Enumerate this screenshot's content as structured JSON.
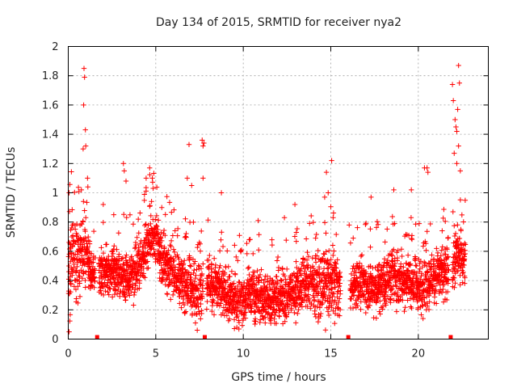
{
  "chart_data": {
    "type": "scatter",
    "title": "Day 134 of 2015, SRMTID for receiver nya2",
    "xlabel": "GPS time / hours",
    "ylabel": "SRMTID / TECUs",
    "xlim": [
      0,
      24
    ],
    "ylim": [
      0,
      2
    ],
    "xticks": [
      0,
      5,
      10,
      15,
      20
    ],
    "yticks": [
      0,
      0.2,
      0.4,
      0.6,
      0.8,
      1,
      1.2,
      1.4,
      1.6,
      1.8,
      2
    ],
    "xtick_labels": [
      "0",
      "5",
      "10",
      "15",
      "20"
    ],
    "ytick_labels": [
      "0",
      "0.2",
      "0.4",
      "0.6",
      "0.8",
      "1",
      "1.2",
      "1.4",
      "1.6",
      "1.8",
      "2"
    ],
    "grid": true,
    "marker": "plus",
    "color": "#ff0000",
    "profile": [
      {
        "x": 0.0,
        "lo": 0.05,
        "hi": 1.02
      },
      {
        "x": 0.5,
        "lo": 0.15,
        "hi": 0.95
      },
      {
        "x": 0.9,
        "lo": 0.25,
        "hi": 1.1
      },
      {
        "x": 1.3,
        "lo": 0.25,
        "hi": 0.65
      },
      {
        "x": 2.0,
        "lo": 0.22,
        "hi": 0.7
      },
      {
        "x": 3.0,
        "lo": 0.22,
        "hi": 0.7
      },
      {
        "x": 3.5,
        "lo": 0.15,
        "hi": 0.65
      },
      {
        "x": 4.2,
        "lo": 0.3,
        "hi": 0.8
      },
      {
        "x": 4.8,
        "lo": 0.45,
        "hi": 1.05
      },
      {
        "x": 5.3,
        "lo": 0.3,
        "hi": 0.85
      },
      {
        "x": 6.0,
        "lo": 0.2,
        "hi": 0.7
      },
      {
        "x": 6.8,
        "lo": 0.1,
        "hi": 0.65
      },
      {
        "x": 7.4,
        "lo": 0.02,
        "hi": 0.6
      },
      {
        "x": 7.9,
        "lo": 0.15,
        "hi": 0.7
      },
      {
        "x": 8.6,
        "lo": 0.1,
        "hi": 0.6
      },
      {
        "x": 9.5,
        "lo": 0.02,
        "hi": 0.5
      },
      {
        "x": 10.5,
        "lo": 0.05,
        "hi": 0.55
      },
      {
        "x": 11.5,
        "lo": 0.05,
        "hi": 0.5
      },
      {
        "x": 12.5,
        "lo": 0.05,
        "hi": 0.55
      },
      {
        "x": 13.5,
        "lo": 0.1,
        "hi": 0.65
      },
      {
        "x": 14.5,
        "lo": 0.05,
        "hi": 0.7
      },
      {
        "x": 15.2,
        "lo": 0.02,
        "hi": 0.75
      },
      {
        "x": 15.9,
        "lo": 0.1,
        "hi": 0.5
      },
      {
        "x": 16.5,
        "lo": 0.15,
        "hi": 0.65
      },
      {
        "x": 17.5,
        "lo": 0.1,
        "hi": 0.6
      },
      {
        "x": 18.5,
        "lo": 0.15,
        "hi": 0.7
      },
      {
        "x": 19.5,
        "lo": 0.15,
        "hi": 0.65
      },
      {
        "x": 20.2,
        "lo": 0.1,
        "hi": 0.6
      },
      {
        "x": 21.0,
        "lo": 0.2,
        "hi": 0.7
      },
      {
        "x": 21.6,
        "lo": 0.15,
        "hi": 0.75
      },
      {
        "x": 22.2,
        "lo": 0.3,
        "hi": 0.85
      },
      {
        "x": 22.7,
        "lo": 0.35,
        "hi": 0.75
      }
    ],
    "gaps": [
      [
        1.55,
        1.75
      ],
      [
        7.7,
        7.9
      ],
      [
        15.55,
        16.1
      ],
      [
        21.75,
        21.95
      ]
    ],
    "gap_markers": [
      1.65,
      7.8,
      16.0,
      21.85
    ],
    "outliers": [
      {
        "x": 0.05,
        "y": 1.0
      },
      {
        "x": 0.05,
        "y": 0.05
      },
      {
        "x": 0.85,
        "y": 1.3
      },
      {
        "x": 0.88,
        "y": 1.6
      },
      {
        "x": 0.9,
        "y": 1.85
      },
      {
        "x": 0.93,
        "y": 1.79
      },
      {
        "x": 0.98,
        "y": 1.43
      },
      {
        "x": 1.0,
        "y": 1.32
      },
      {
        "x": 0.75,
        "y": 1.02
      },
      {
        "x": 1.1,
        "y": 1.1
      },
      {
        "x": 2.0,
        "y": 0.92
      },
      {
        "x": 2.6,
        "y": 0.85
      },
      {
        "x": 3.15,
        "y": 1.2
      },
      {
        "x": 3.2,
        "y": 1.15
      },
      {
        "x": 3.3,
        "y": 1.08
      },
      {
        "x": 4.45,
        "y": 1.1
      },
      {
        "x": 4.65,
        "y": 1.17
      },
      {
        "x": 4.8,
        "y": 1.1
      },
      {
        "x": 6.9,
        "y": 1.33
      },
      {
        "x": 6.8,
        "y": 1.1
      },
      {
        "x": 7.05,
        "y": 1.05
      },
      {
        "x": 7.65,
        "y": 1.36
      },
      {
        "x": 7.7,
        "y": 1.32
      },
      {
        "x": 7.75,
        "y": 1.34
      },
      {
        "x": 7.7,
        "y": 1.1
      },
      {
        "x": 8.75,
        "y": 1.0
      },
      {
        "x": 10.85,
        "y": 0.81
      },
      {
        "x": 12.35,
        "y": 0.83
      },
      {
        "x": 12.95,
        "y": 0.92
      },
      {
        "x": 14.65,
        "y": 0.97
      },
      {
        "x": 14.75,
        "y": 1.14
      },
      {
        "x": 14.85,
        "y": 1.0
      },
      {
        "x": 15.05,
        "y": 1.22
      },
      {
        "x": 16.05,
        "y": 0.78
      },
      {
        "x": 17.3,
        "y": 0.97
      },
      {
        "x": 18.6,
        "y": 1.02
      },
      {
        "x": 19.6,
        "y": 1.02
      },
      {
        "x": 20.35,
        "y": 1.17
      },
      {
        "x": 20.5,
        "y": 1.17
      },
      {
        "x": 20.55,
        "y": 1.14
      },
      {
        "x": 21.95,
        "y": 1.74
      },
      {
        "x": 22.0,
        "y": 1.63
      },
      {
        "x": 22.1,
        "y": 1.5
      },
      {
        "x": 22.15,
        "y": 1.45
      },
      {
        "x": 22.2,
        "y": 1.42
      },
      {
        "x": 22.3,
        "y": 1.87
      },
      {
        "x": 22.35,
        "y": 1.75
      },
      {
        "x": 22.3,
        "y": 1.32
      },
      {
        "x": 22.2,
        "y": 1.2
      },
      {
        "x": 22.4,
        "y": 1.15
      },
      {
        "x": 22.25,
        "y": 1.57
      },
      {
        "x": 22.05,
        "y": 1.27
      }
    ]
  }
}
